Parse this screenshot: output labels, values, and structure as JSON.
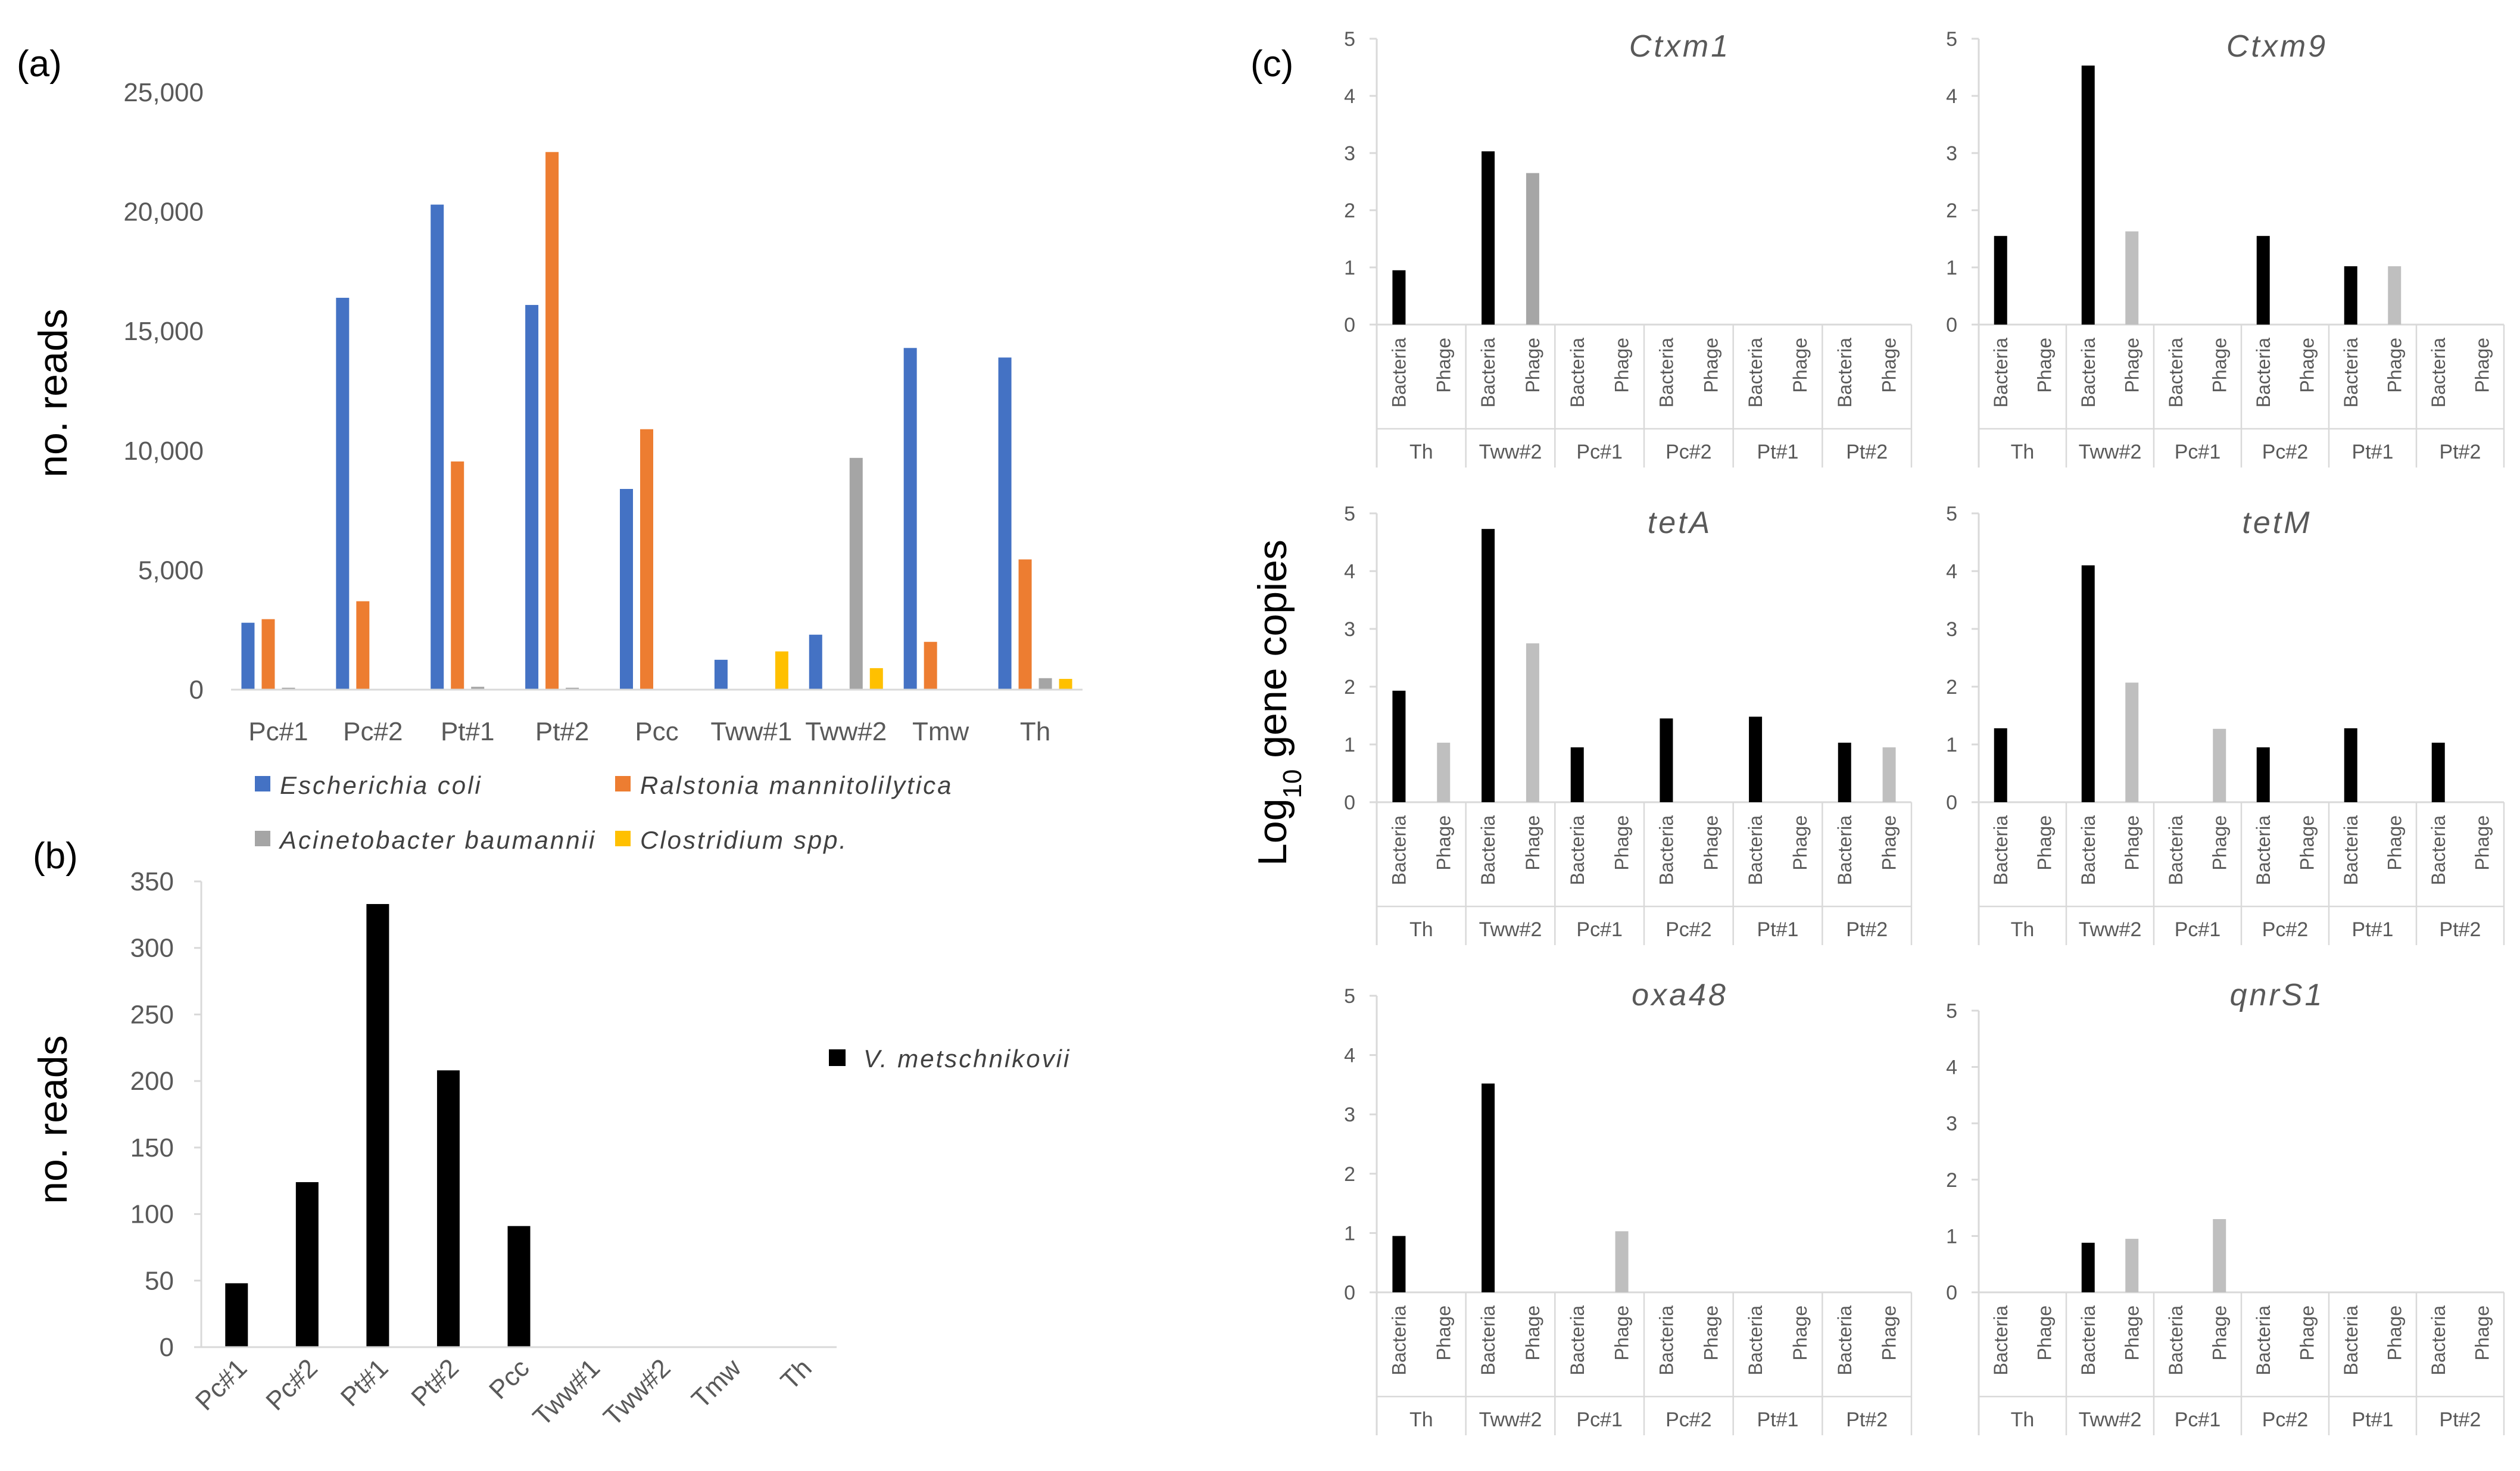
{
  "figure": {
    "panel_labels": [
      "(a)",
      "(b)",
      "(c)"
    ],
    "c_ylabel_base": "Log",
    "c_ylabel_sub": "10",
    "c_ylabel_rest": " gene copies"
  },
  "colors": {
    "e_coli": "#4472c4",
    "ralstonia": "#ed7d31",
    "acinetobacter": "#a5a5a5",
    "clostridium": "#ffc000",
    "black": "#000000",
    "gray_phage": "#a6a6a6",
    "light_phage": "#bfbfbf"
  },
  "chart_data": [
    {
      "id": "a",
      "type": "bar",
      "ylabel": "no. reads",
      "ylim": [
        0,
        25000
      ],
      "yticks": [
        "0",
        "5,000",
        "10,000",
        "15,000",
        "20,000",
        "25,000"
      ],
      "ytick_values": [
        0,
        5000,
        10000,
        15000,
        20000,
        25000
      ],
      "categories": [
        "Pc#1",
        "Pc#2",
        "Pt#1",
        "Pt#2",
        "Pcc",
        "Tww#1",
        "Tww#2",
        "Tmw",
        "Th"
      ],
      "series": [
        {
          "name": "Escherichia coli",
          "color_key": "e_coli",
          "values": [
            2800,
            16400,
            20300,
            16100,
            8400,
            1250,
            2300,
            14300,
            13900
          ]
        },
        {
          "name": "Ralstonia mannitolilytica",
          "color_key": "ralstonia",
          "values": [
            2950,
            3700,
            9550,
            22500,
            10900,
            0,
            0,
            2000,
            5450
          ]
        },
        {
          "name": "Acinetobacter baumannii",
          "color_key": "acinetobacter",
          "values": [
            80,
            0,
            120,
            80,
            0,
            0,
            9700,
            0,
            480
          ]
        },
        {
          "name": "Clostridium spp.",
          "color_key": "clostridium",
          "values": [
            0,
            0,
            0,
            0,
            0,
            1600,
            900,
            0,
            450
          ]
        }
      ],
      "legend": [
        "Escherichia coli",
        "Ralstonia mannitolilytica",
        "Acinetobacter baumannii",
        "Clostridium spp."
      ]
    },
    {
      "id": "b",
      "type": "bar",
      "ylabel": "no. reads",
      "ylim": [
        0,
        350
      ],
      "yticks": [
        "0",
        "50",
        "100",
        "150",
        "200",
        "250",
        "300",
        "350"
      ],
      "ytick_values": [
        0,
        50,
        100,
        150,
        200,
        250,
        300,
        350
      ],
      "categories": [
        "Pc#1",
        "Pc#2",
        "Pt#1",
        "Pt#2",
        "Pcc",
        "Tww#1",
        "Tww#2",
        "Tmw",
        "Th"
      ],
      "series": [
        {
          "name": "V. metschnikovii",
          "color_key": "black",
          "values": [
            48,
            124,
            333,
            208,
            91,
            0,
            0,
            0,
            0
          ]
        }
      ],
      "legend": [
        "V. metschnikovii"
      ]
    },
    {
      "id": "c",
      "type": "bar",
      "ylabel": "Log10 gene copies",
      "ylim": [
        0,
        5
      ],
      "yticks": [
        "0",
        "1",
        "2",
        "3",
        "4",
        "5"
      ],
      "ytick_values": [
        0,
        1,
        2,
        3,
        4,
        5
      ],
      "groups": [
        "Th",
        "Tww#2",
        "Pc#1",
        "Pc#2",
        "Pt#1",
        "Pt#2"
      ],
      "subcategories": [
        "Bacteria",
        "Phage"
      ],
      "subplots": [
        {
          "title": "Ctxm1",
          "phage_color_key": "gray_phage",
          "values": [
            0.95,
            0,
            3.03,
            2.65,
            0,
            0,
            0,
            0,
            0,
            0,
            0,
            0
          ]
        },
        {
          "title": "Ctxm9",
          "phage_color_key": "light_phage",
          "values": [
            1.55,
            0,
            4.53,
            1.63,
            0,
            0,
            1.55,
            0,
            1.02,
            1.02,
            0,
            0
          ]
        },
        {
          "title": "tetA",
          "phage_color_key": "light_phage",
          "values": [
            1.93,
            1.03,
            4.73,
            2.75,
            0.95,
            0,
            1.45,
            0,
            1.48,
            0,
            1.03,
            0.95
          ]
        },
        {
          "title": "tetM",
          "phage_color_key": "light_phage",
          "values": [
            1.28,
            0,
            4.1,
            2.07,
            0,
            1.27,
            0.95,
            0,
            1.28,
            0,
            1.03,
            0
          ]
        },
        {
          "title": "oxa48",
          "phage_color_key": "light_phage",
          "values": [
            0.95,
            0,
            3.52,
            0,
            0,
            1.03,
            0,
            0,
            0,
            0,
            0,
            0
          ]
        },
        {
          "title": "qnrS1",
          "phage_color_key": "light_phage",
          "values": [
            0,
            0,
            0.88,
            0.95,
            0,
            1.3,
            0,
            0,
            0,
            0,
            0,
            0
          ]
        }
      ]
    }
  ]
}
